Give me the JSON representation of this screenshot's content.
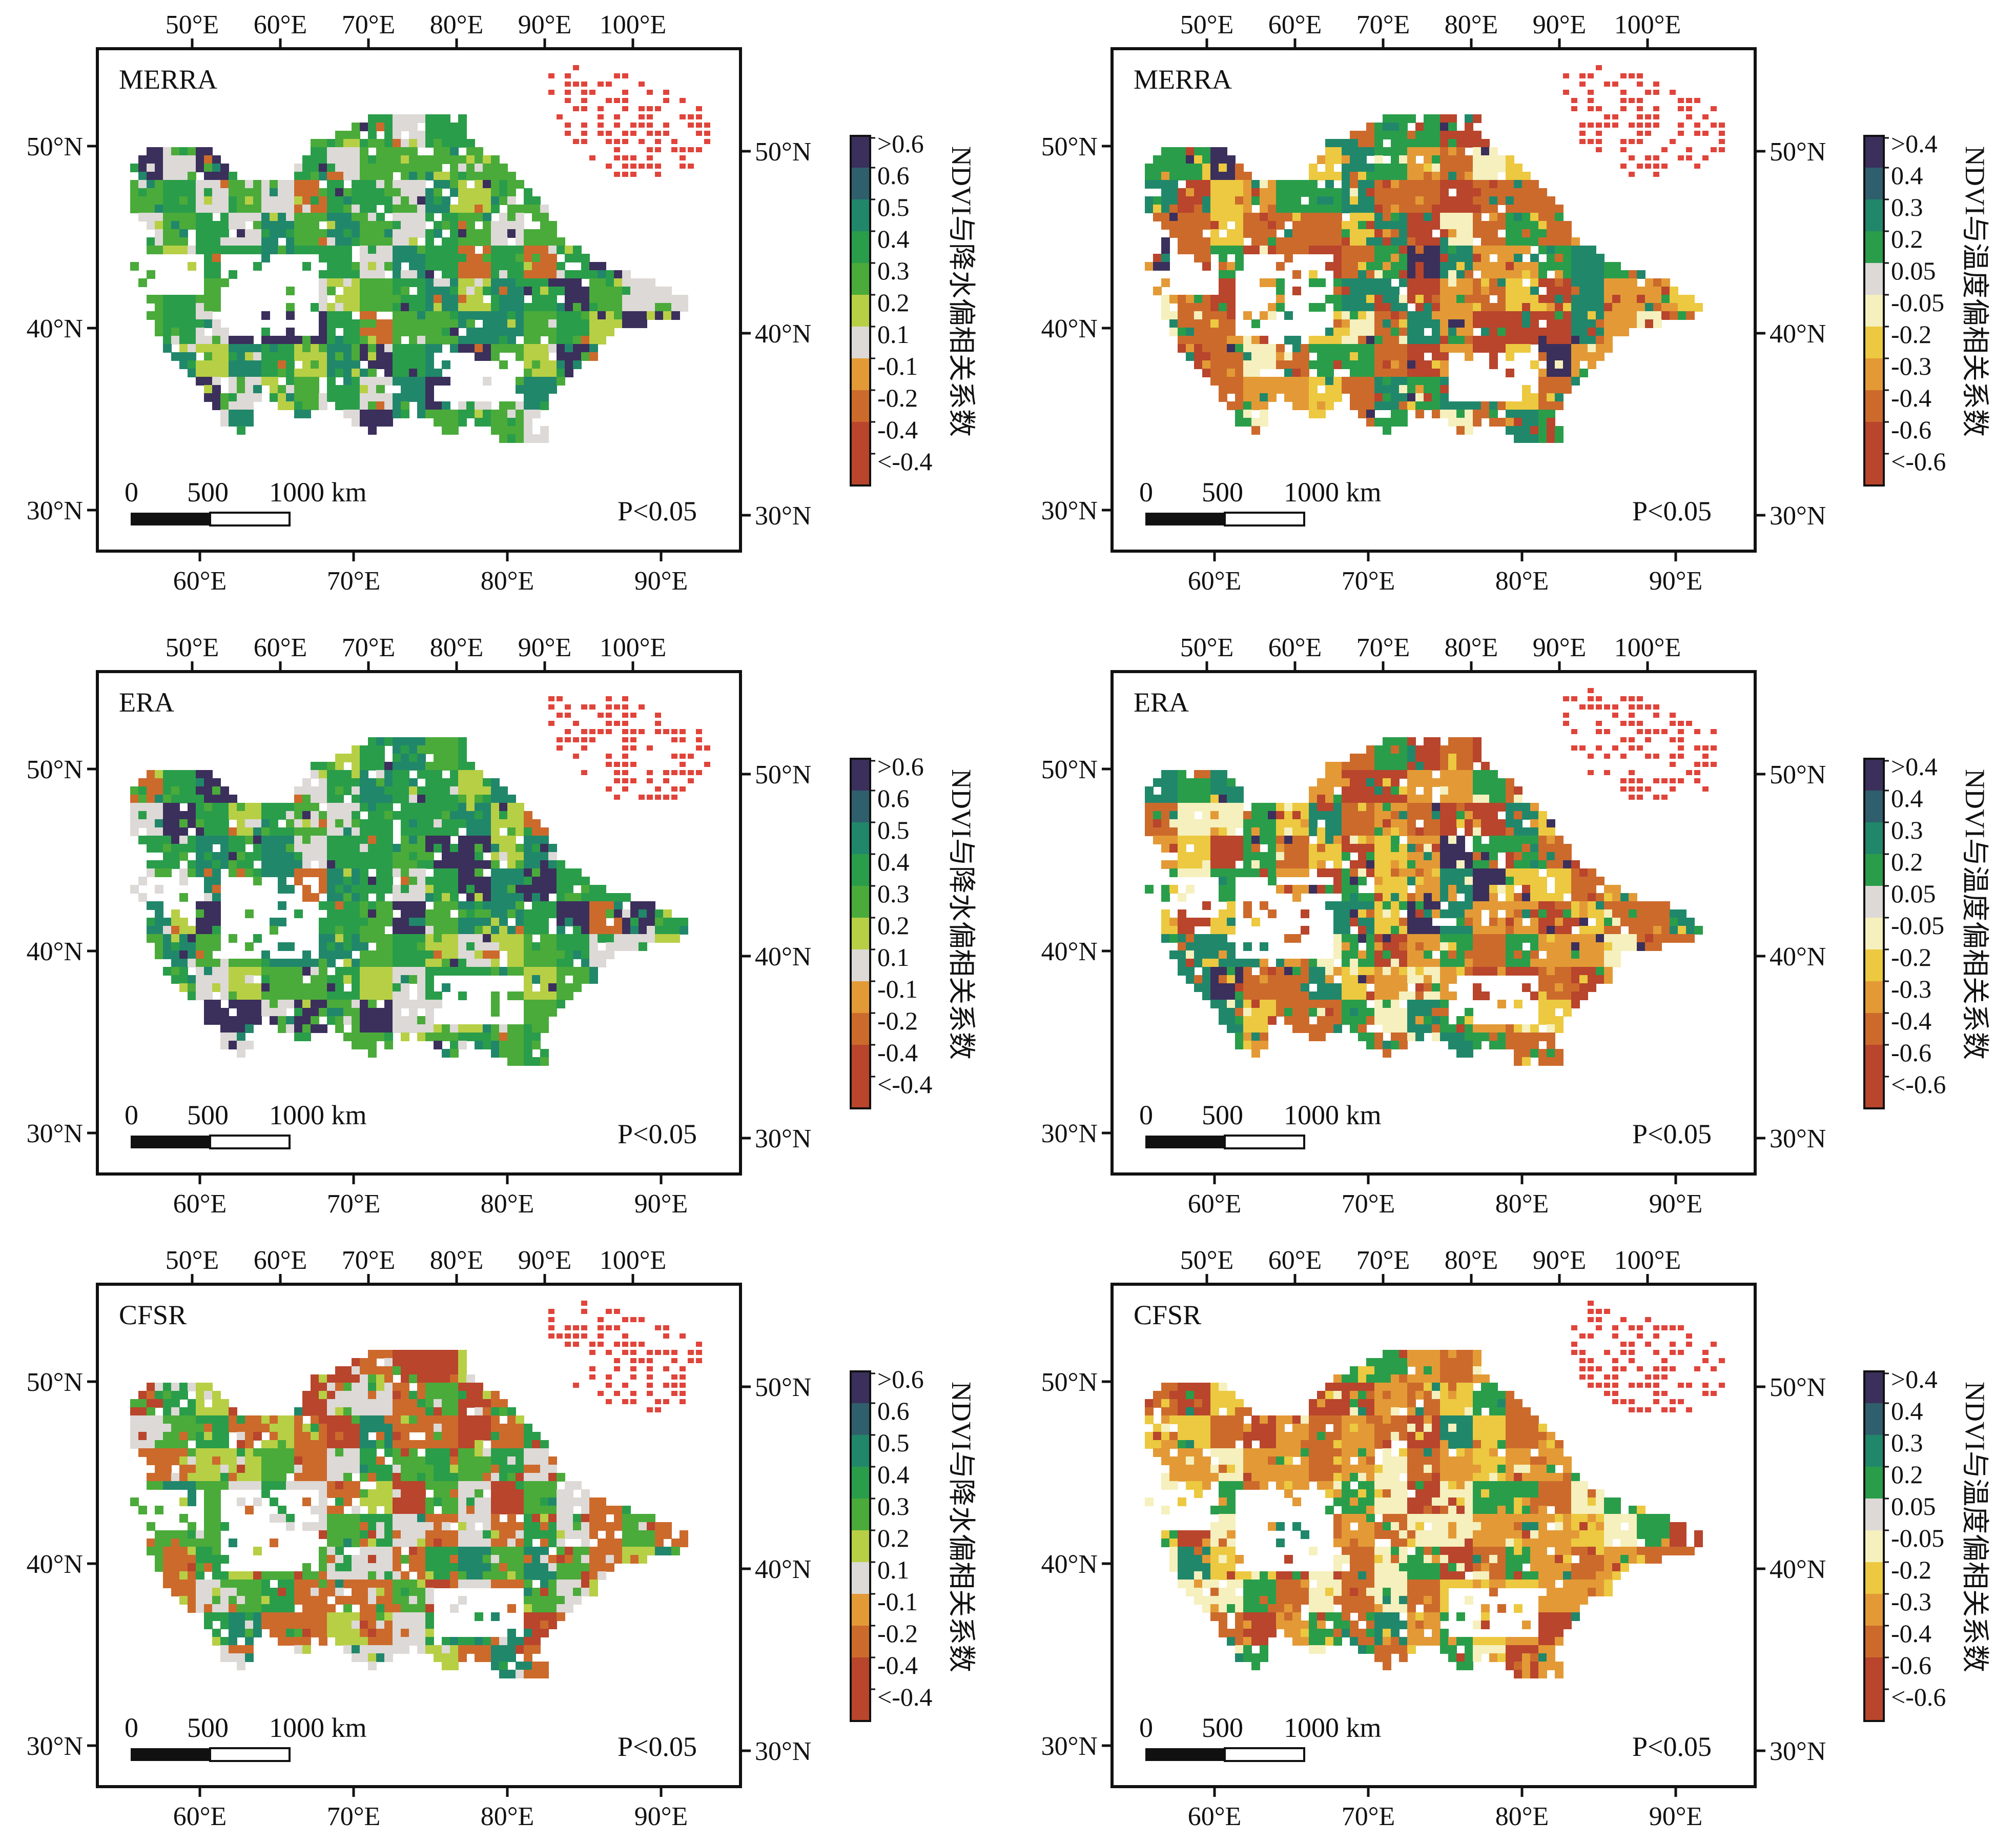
{
  "figure": {
    "panels": [
      {
        "id": "precip-merra",
        "dataset": "MERRA",
        "kind": "precipitation",
        "p_label": "P<0.05",
        "scale_labels": [
          "0",
          "500",
          "1000 km"
        ],
        "top_ticks": [
          "50°E",
          "60°E",
          "70°E",
          "80°E",
          "90°E",
          "100°E"
        ],
        "bottom_ticks": [
          "60°E",
          "70°E",
          "80°E",
          "90°E"
        ],
        "left_ticks": [
          "50°N",
          "40°N",
          "30°N"
        ],
        "right_ticks": [
          "50°N",
          "40°N",
          "30°N"
        ],
        "colorbar_title": "NDVI与降水偏相关系数"
      },
      {
        "id": "temp-merra",
        "dataset": "MERRA",
        "kind": "temperature",
        "p_label": "P<0.05",
        "scale_labels": [
          "0",
          "500",
          "1000 km"
        ],
        "top_ticks": [
          "50°E",
          "60°E",
          "70°E",
          "80°E",
          "90°E",
          "100°E"
        ],
        "bottom_ticks": [
          "60°E",
          "70°E",
          "80°E",
          "90°E"
        ],
        "left_ticks": [
          "50°N",
          "40°N",
          "30°N"
        ],
        "right_ticks": [
          "50°N",
          "40°N",
          "30°N"
        ],
        "colorbar_title": "NDVI与温度偏相关系数"
      },
      {
        "id": "precip-era",
        "dataset": "ERA",
        "kind": "precipitation",
        "p_label": "P<0.05",
        "scale_labels": [
          "0",
          "500",
          "1000 km"
        ],
        "top_ticks": [
          "50°E",
          "60°E",
          "70°E",
          "80°E",
          "90°E",
          "100°E"
        ],
        "bottom_ticks": [
          "60°E",
          "70°E",
          "80°E",
          "90°E"
        ],
        "left_ticks": [
          "50°N",
          "40°N",
          "30°N"
        ],
        "right_ticks": [
          "50°N",
          "40°N",
          "30°N"
        ],
        "colorbar_title": "NDVI与降水偏相关系数"
      },
      {
        "id": "temp-era",
        "dataset": "ERA",
        "kind": "temperature",
        "p_label": "P<0.05",
        "scale_labels": [
          "0",
          "500",
          "1000 km"
        ],
        "top_ticks": [
          "50°E",
          "60°E",
          "70°E",
          "80°E",
          "90°E",
          "100°E"
        ],
        "bottom_ticks": [
          "60°E",
          "70°E",
          "80°E",
          "90°E"
        ],
        "left_ticks": [
          "50°N",
          "40°N",
          "30°N"
        ],
        "right_ticks": [
          "50°N",
          "40°N",
          "30°N"
        ],
        "colorbar_title": "NDVI与温度偏相关系数"
      },
      {
        "id": "precip-cfsr",
        "dataset": "CFSR",
        "kind": "precipitation",
        "p_label": "P<0.05",
        "scale_labels": [
          "0",
          "500",
          "1000 km"
        ],
        "top_ticks": [
          "50°E",
          "60°E",
          "70°E",
          "80°E",
          "90°E",
          "100°E"
        ],
        "bottom_ticks": [
          "60°E",
          "70°E",
          "80°E",
          "90°E"
        ],
        "left_ticks": [
          "50°N",
          "40°N",
          "30°N"
        ],
        "right_ticks": [
          "50°N",
          "40°N",
          "30°N"
        ],
        "colorbar_title": "NDVI与降水偏相关系数"
      },
      {
        "id": "temp-cfsr",
        "dataset": "CFSR",
        "kind": "temperature",
        "p_label": "P<0.05",
        "scale_labels": [
          "0",
          "500",
          "1000 km"
        ],
        "top_ticks": [
          "50°E",
          "60°E",
          "70°E",
          "80°E",
          "90°E",
          "100°E"
        ],
        "bottom_ticks": [
          "60°E",
          "70°E",
          "80°E",
          "90°E"
        ],
        "left_ticks": [
          "50°N",
          "40°N",
          "30°N"
        ],
        "right_ticks": [
          "50°N",
          "40°N",
          "30°N"
        ],
        "colorbar_title": "NDVI与温度偏相关系数"
      }
    ],
    "legends": {
      "precipitation": {
        "labels": [
          ">0.6",
          "0.6",
          "0.5",
          "0.4",
          "0.3",
          "0.2",
          "0.1",
          "-0.1",
          "-0.2",
          "-0.4",
          "<-0.4"
        ],
        "colors": [
          "#3b2f5c",
          "#2f5f6c",
          "#21876a",
          "#2a9d4a",
          "#4aab3a",
          "#b7cf45",
          "#ddd9d6",
          "#e39a36",
          "#cc6a2c",
          "#b8452c",
          "#b8452c"
        ]
      },
      "temperature": {
        "labels": [
          ">0.4",
          "0.4",
          "0.3",
          "0.2",
          "0.05",
          "-0.05",
          "-0.2",
          "-0.3",
          "-0.4",
          "-0.6",
          "<-0.6"
        ],
        "colors": [
          "#3b2f5c",
          "#2f5f6c",
          "#21876a",
          "#2a9d4a",
          "#ddd9d6",
          "#f5f0bd",
          "#ecc940",
          "#e39a36",
          "#cc6a2c",
          "#b8452c",
          "#b8452c"
        ]
      }
    },
    "map_colors": {
      "mongolia_overlay": "#e0443a",
      "no_data": "#ffffff"
    }
  }
}
